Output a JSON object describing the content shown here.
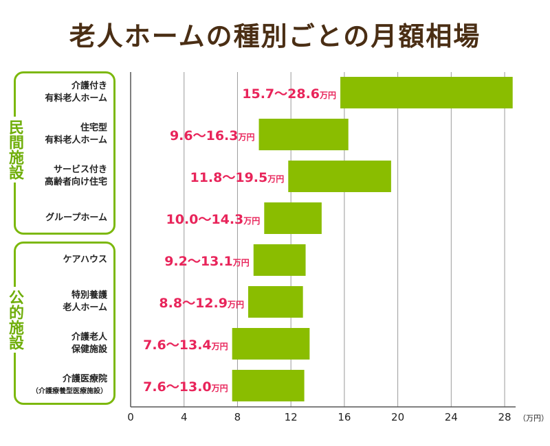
{
  "title": "老人ホームの種別ごとの月額相場",
  "groups": [
    {
      "label": "民間施設"
    },
    {
      "label": "公的施設"
    }
  ],
  "colors": {
    "bar": "#8abd00",
    "label": "#e8245a",
    "group": "#7cb80c",
    "title": "#4a2e14",
    "grid": "#9a9a9a"
  },
  "chart_data": {
    "type": "bar",
    "orientation": "horizontal-range",
    "categories": [
      "介護付き\n有料老人ホーム",
      "住宅型\n有料老人ホーム",
      "サービス付き\n高齢者向け住宅",
      "グループホーム",
      "ケアハウス",
      "特別養護\n老人ホーム",
      "介護老人\n保健施設",
      "介護医療院\n（介護療養型医療施設）"
    ],
    "ranges": [
      [
        15.7,
        28.6
      ],
      [
        9.6,
        16.3
      ],
      [
        11.8,
        19.5
      ],
      [
        10.0,
        14.3
      ],
      [
        9.2,
        13.1
      ],
      [
        8.8,
        12.9
      ],
      [
        7.6,
        13.4
      ],
      [
        7.6,
        13.0
      ]
    ],
    "range_labels": [
      "15.7～28.6",
      "9.6～16.3",
      "11.8～19.5",
      "10.0～14.3",
      "9.2～13.1",
      "8.8～12.9",
      "7.6～13.4",
      "7.6～13.0"
    ],
    "value_unit": "万円",
    "xticks": [
      "0",
      "4",
      "8",
      "12",
      "16",
      "20",
      "24",
      "28"
    ],
    "xlim": [
      0,
      29.5
    ],
    "xunit": "（万円）",
    "grid": true
  }
}
